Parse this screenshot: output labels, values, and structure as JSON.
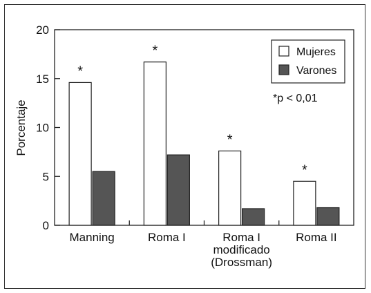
{
  "chart_data": {
    "type": "bar",
    "categories": [
      [
        "Manning"
      ],
      [
        "Roma I"
      ],
      [
        "Roma I",
        "modificado",
        "(Drossman)"
      ],
      [
        "Roma II"
      ]
    ],
    "series": [
      {
        "name": "Mujeres",
        "values": [
          14.6,
          16.7,
          7.6,
          4.5
        ],
        "color": "#ffffff"
      },
      {
        "name": "Varones",
        "values": [
          5.5,
          7.2,
          1.7,
          1.8
        ],
        "color": "#555555"
      }
    ],
    "significance": [
      true,
      true,
      true,
      true
    ],
    "significance_marker": "*",
    "note": "*p < 0,01",
    "ylabel": "Porcentaje",
    "xlabel": "",
    "ylim": [
      0,
      20
    ],
    "yticks": [
      0,
      5,
      10,
      15,
      20
    ],
    "grid": false,
    "legend_position": "top-right"
  }
}
